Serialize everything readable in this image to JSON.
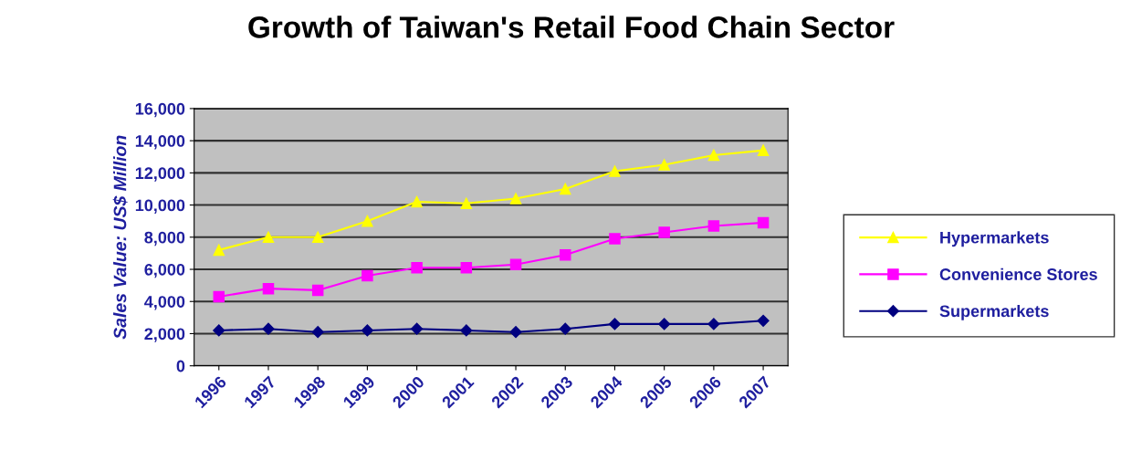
{
  "chart_data": {
    "type": "line",
    "title": "Growth of Taiwan's Retail Food Chain Sector",
    "ylabel": "Sales Value: US$ Million",
    "categories": [
      "1996",
      "1997",
      "1998",
      "1999",
      "2000",
      "2001",
      "2002",
      "2003",
      "2004",
      "2005",
      "2006",
      "2007"
    ],
    "series": [
      {
        "name": "Hypermarkets",
        "color": "#ffff00",
        "marker": "triangle",
        "values": [
          7200,
          8000,
          8000,
          9000,
          10200,
          10100,
          10400,
          11000,
          12100,
          12500,
          13100,
          13400
        ]
      },
      {
        "name": "Convenience Stores",
        "color": "#ff00ff",
        "marker": "square",
        "values": [
          4300,
          4800,
          4700,
          5600,
          6100,
          6100,
          6300,
          6900,
          7900,
          8300,
          8700,
          8900
        ]
      },
      {
        "name": "Supermarkets",
        "color": "#000080",
        "marker": "diamond",
        "values": [
          2200,
          2300,
          2100,
          2200,
          2300,
          2200,
          2100,
          2300,
          2600,
          2600,
          2600,
          2800
        ]
      }
    ],
    "ylim": [
      0,
      16000
    ],
    "yticks": [
      {
        "value": 0,
        "label": "0"
      },
      {
        "value": 2000,
        "label": "2,000"
      },
      {
        "value": 4000,
        "label": "4,000"
      },
      {
        "value": 6000,
        "label": "6,000"
      },
      {
        "value": 8000,
        "label": "8,000"
      },
      {
        "value": 10000,
        "label": "10,000"
      },
      {
        "value": 12000,
        "label": "12,000"
      },
      {
        "value": 14000,
        "label": "14,000"
      },
      {
        "value": 16000,
        "label": "16,000"
      }
    ],
    "grid": "y",
    "legend": "right"
  }
}
